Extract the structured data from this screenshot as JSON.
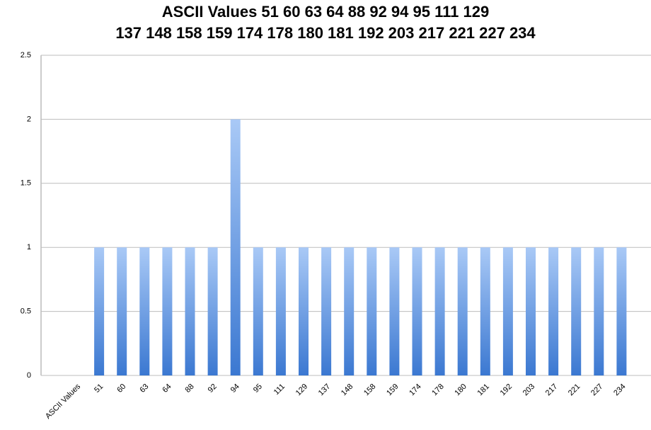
{
  "chart_data": {
    "type": "bar",
    "title": [
      "ASCII Values 51 60 63 64 88 92 94 95 111 129",
      "137 148 158 159 174 178 180 181 192 203 217 221 227 234"
    ],
    "categories": [
      "ASCII Values",
      "51",
      "60",
      "63",
      "64",
      "88",
      "92",
      "94",
      "95",
      "111",
      "129",
      "137",
      "148",
      "158",
      "159",
      "174",
      "178",
      "180",
      "181",
      "192",
      "203",
      "217",
      "221",
      "227",
      "234"
    ],
    "values": [
      null,
      1,
      1,
      1,
      1,
      1,
      1,
      2,
      1,
      1,
      1,
      1,
      1,
      1,
      1,
      1,
      1,
      1,
      1,
      1,
      1,
      1,
      1,
      1,
      1
    ],
    "color": [
      "#a9c9f6",
      "#3b78d1"
    ],
    "ylim": [
      0,
      2.5
    ],
    "yticks": [
      0,
      0.5,
      1,
      1.5,
      2,
      2.5
    ],
    "grid": true
  }
}
